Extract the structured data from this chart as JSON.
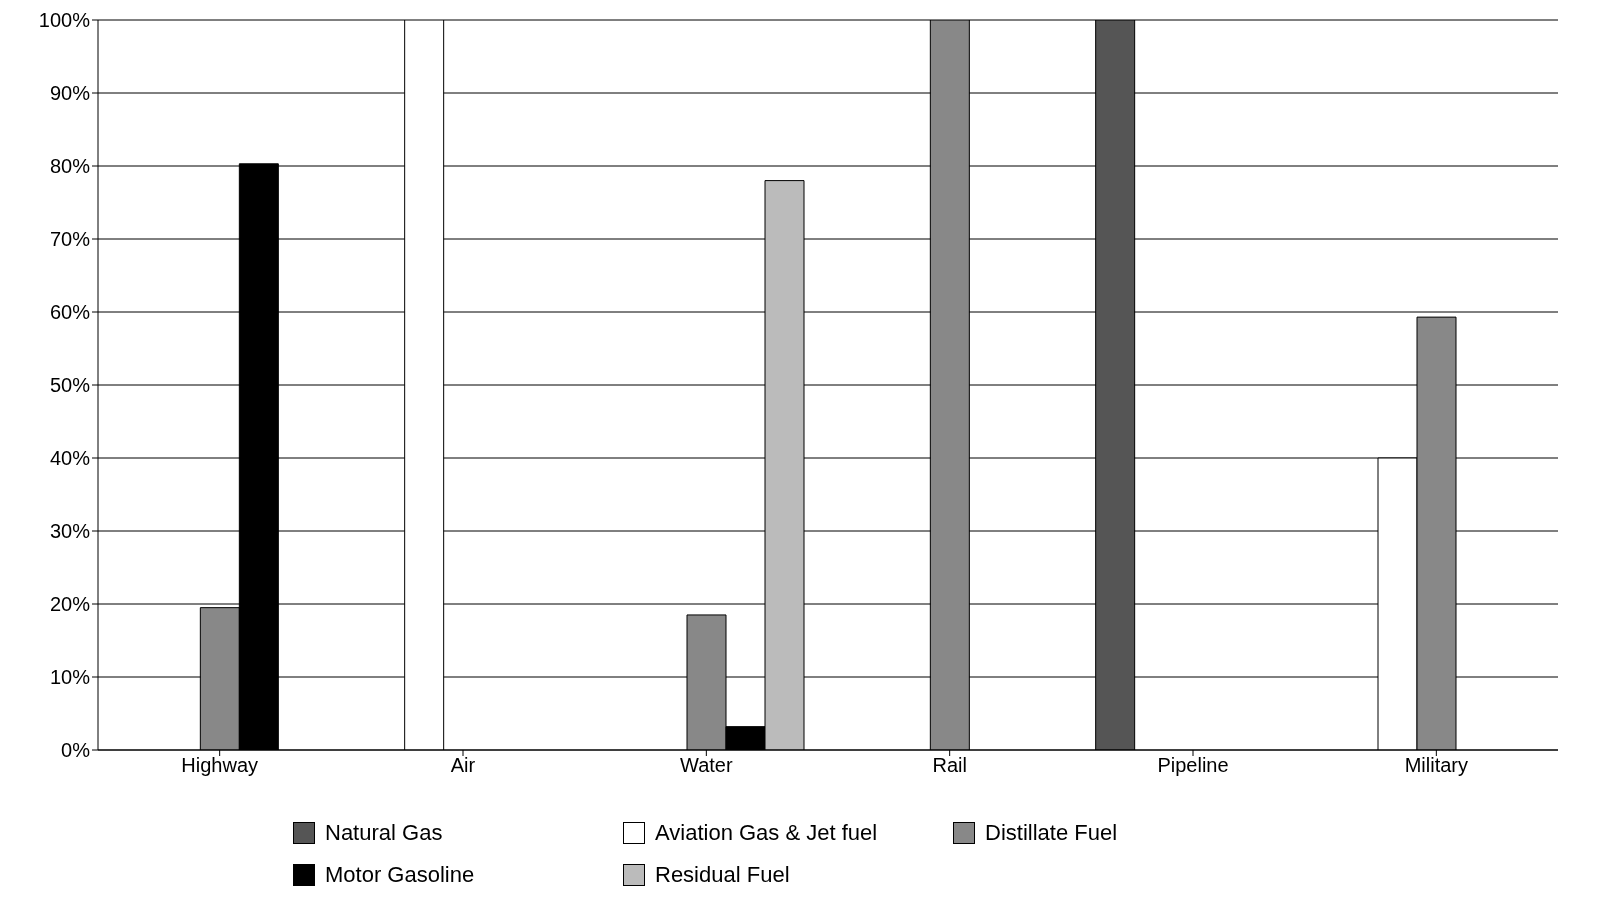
{
  "chart_data": {
    "type": "bar",
    "categories": [
      "Highway",
      "Air",
      "Water",
      "Rail",
      "Pipeline",
      "Military"
    ],
    "series": [
      {
        "name": "Natural Gas",
        "color": "#555555",
        "values": [
          null,
          null,
          null,
          null,
          100,
          null
        ]
      },
      {
        "name": "Aviation Gas & Jet fuel",
        "color": "#ffffff",
        "values": [
          null,
          100,
          null,
          null,
          null,
          40
        ]
      },
      {
        "name": "Distillate Fuel",
        "color": "#888888",
        "values": [
          19.5,
          null,
          18.5,
          100,
          null,
          59.3
        ]
      },
      {
        "name": "Motor Gasoline",
        "color": "#000000",
        "values": [
          80.3,
          null,
          3.2,
          null,
          null,
          null
        ]
      },
      {
        "name": "Residual Fuel",
        "color": "#bbbbbb",
        "values": [
          null,
          null,
          78,
          null,
          null,
          null
        ]
      }
    ],
    "ylim": [
      0,
      100
    ],
    "yticks": [
      {
        "value": 0,
        "label": "0%"
      },
      {
        "value": 10,
        "label": "10%"
      },
      {
        "value": 20,
        "label": "20%"
      },
      {
        "value": 30,
        "label": "30%"
      },
      {
        "value": 40,
        "label": "40%"
      },
      {
        "value": 50,
        "label": "50%"
      },
      {
        "value": 60,
        "label": "60%"
      },
      {
        "value": 70,
        "label": "70%"
      },
      {
        "value": 80,
        "label": "80%"
      },
      {
        "value": 90,
        "label": "90%"
      },
      {
        "value": 100,
        "label": "100%"
      }
    ],
    "grid": "y",
    "legend": "bottom"
  }
}
